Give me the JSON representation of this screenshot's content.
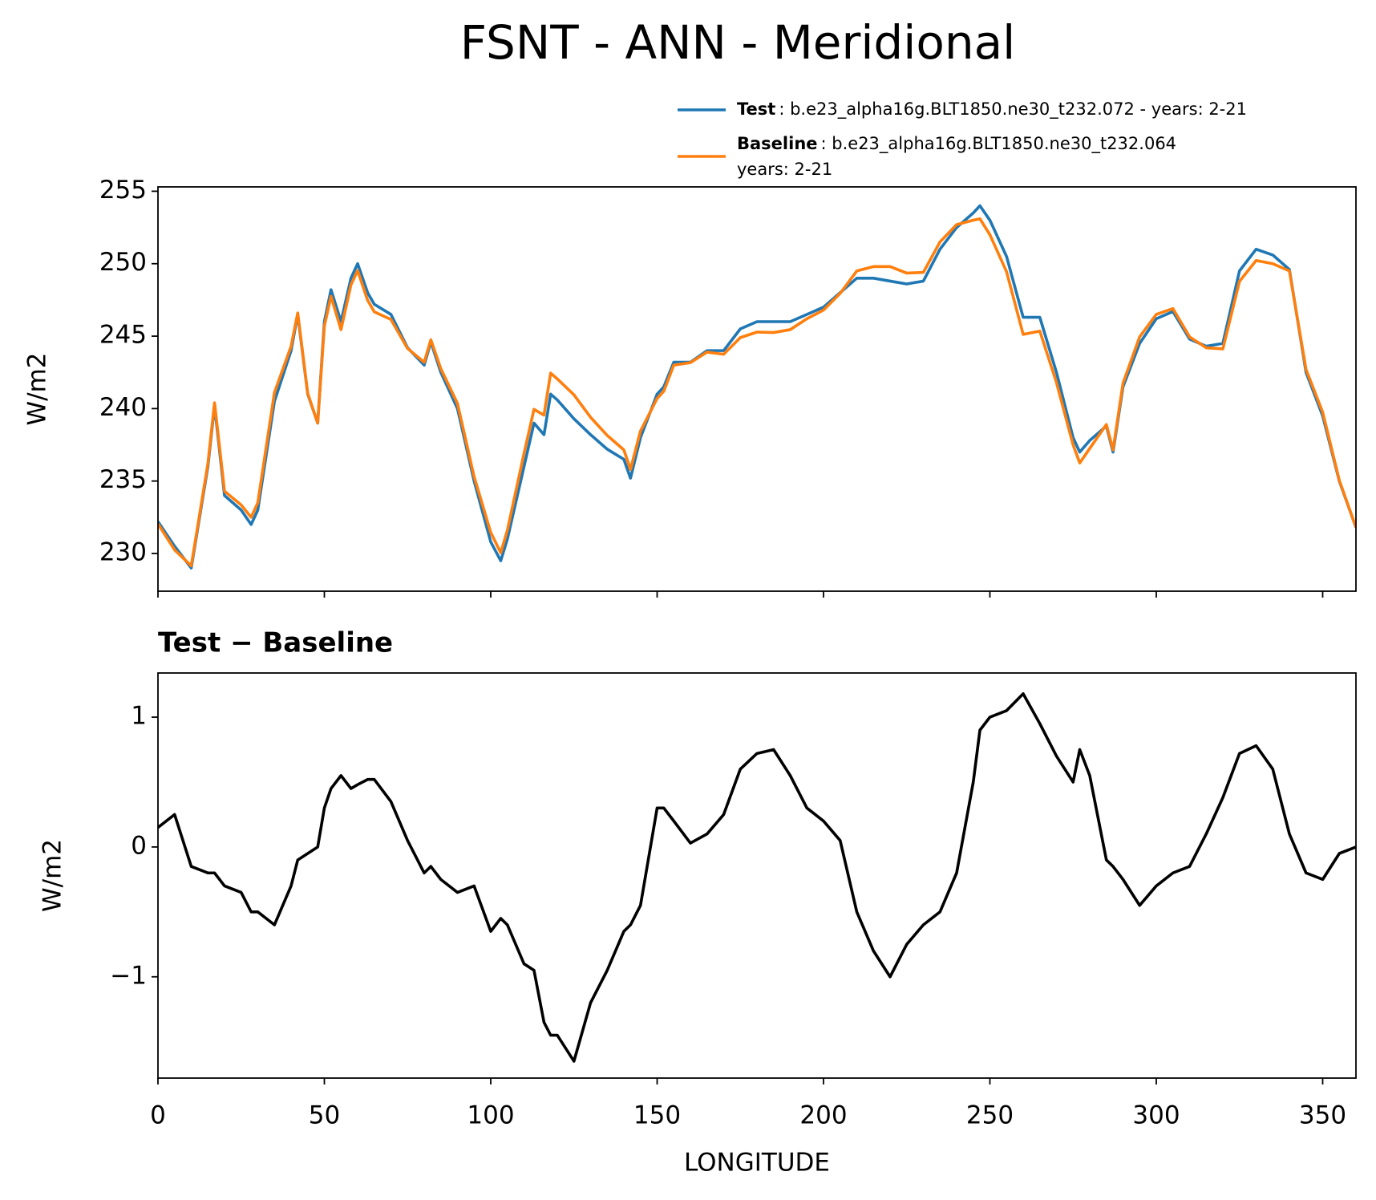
{
  "chart_data": [
    {
      "type": "line",
      "title": "FSNT - ANN - Meridional",
      "ylabel": "W/m2",
      "x": [
        0,
        5,
        10,
        15,
        17,
        20,
        25,
        28,
        30,
        35,
        40,
        42,
        45,
        48,
        50,
        52,
        55,
        58,
        60,
        63,
        65,
        70,
        75,
        80,
        82,
        85,
        90,
        95,
        100,
        103,
        105,
        110,
        113,
        116,
        118,
        120,
        125,
        130,
        135,
        140,
        142,
        145,
        150,
        152,
        155,
        160,
        165,
        170,
        175,
        180,
        185,
        190,
        195,
        200,
        205,
        210,
        215,
        220,
        225,
        230,
        235,
        240,
        245,
        247,
        250,
        255,
        260,
        265,
        270,
        275,
        277,
        280,
        285,
        287,
        290,
        295,
        300,
        305,
        310,
        315,
        320,
        325,
        330,
        335,
        340,
        345,
        350,
        355,
        360
      ],
      "series": [
        {
          "name": "Test",
          "description": [
            ": b.e23_alpha16g.BLT1850.ne30_t232.072 - years: 2-21"
          ],
          "color": "#1f77b4",
          "values": [
            232.2,
            230.5,
            229,
            236,
            240.2,
            234,
            233,
            232,
            233,
            240.5,
            244,
            246.5,
            241,
            239,
            246,
            248.2,
            246,
            249,
            250,
            248,
            247.2,
            246.5,
            244.2,
            243,
            244.6,
            242.5,
            240,
            235,
            230.8,
            229.5,
            231,
            236,
            239,
            238.2,
            241,
            240.6,
            239.3,
            238.2,
            237.2,
            236.5,
            235.2,
            238,
            241,
            241.5,
            243.2,
            243.2,
            244,
            244,
            245.5,
            246,
            246,
            246,
            246.5,
            247,
            248,
            249,
            249,
            248.8,
            248.6,
            248.8,
            251,
            252.5,
            253.5,
            254,
            253,
            250.5,
            246.3,
            246.3,
            242.5,
            238,
            237,
            237.8,
            238.8,
            237,
            241.5,
            244.5,
            246.2,
            246.7,
            244.8,
            244.3,
            244.5,
            249.5,
            251,
            250.6,
            249.6,
            242.5,
            239.5,
            235,
            231.8
          ]
        },
        {
          "name": "Baseline",
          "description": [
            ": b.e23_alpha16g.BLT1850.ne30_t232.064",
            "years: 2-21"
          ],
          "color": "#ff7f0e",
          "values": [
            232.05,
            230.25,
            229.15,
            236.2,
            240.4,
            234.3,
            233.35,
            232.5,
            233.5,
            241.1,
            244.3,
            246.6,
            241.05,
            239,
            245.7,
            247.75,
            245.45,
            248.55,
            249.52,
            247.48,
            246.68,
            246.15,
            244.15,
            243.2,
            244.75,
            242.75,
            240.35,
            235.3,
            231.45,
            230.05,
            231.6,
            236.9,
            239.95,
            239.55,
            242.45,
            242.05,
            240.95,
            239.4,
            238.15,
            237.15,
            235.8,
            238.45,
            240.7,
            241.2,
            243,
            243.17,
            243.9,
            243.75,
            244.9,
            245.28,
            245.25,
            245.45,
            246.2,
            246.8,
            247.95,
            249.5,
            249.8,
            249.8,
            249.35,
            249.4,
            251.5,
            252.7,
            253,
            253.1,
            252,
            249.45,
            245.12,
            245.35,
            241.8,
            237.5,
            236.25,
            237.25,
            238.9,
            237.15,
            241.75,
            244.95,
            246.5,
            246.9,
            244.95,
            244.2,
            244.12,
            248.78,
            250.22,
            250,
            249.5,
            242.7,
            239.75,
            235.05,
            231.8
          ]
        }
      ],
      "xlim": [
        0,
        360
      ],
      "xticks": [
        0,
        50,
        100,
        150,
        200,
        250,
        300,
        350
      ],
      "show_xtick_labels": false,
      "ylim": [
        227.4,
        255.3
      ],
      "yticks": [
        230,
        235,
        240,
        245,
        250,
        255
      ],
      "legend": "upper right"
    },
    {
      "type": "line",
      "title": "Test − Baseline",
      "ylabel": "W/m2",
      "xlabel": "LONGITUDE",
      "x": [
        0,
        5,
        10,
        15,
        17,
        20,
        25,
        28,
        30,
        35,
        40,
        42,
        45,
        48,
        50,
        52,
        55,
        58,
        60,
        63,
        65,
        70,
        75,
        80,
        82,
        85,
        90,
        95,
        100,
        103,
        105,
        110,
        113,
        116,
        118,
        120,
        125,
        130,
        135,
        140,
        142,
        145,
        150,
        152,
        155,
        160,
        165,
        170,
        175,
        180,
        185,
        190,
        195,
        200,
        205,
        210,
        215,
        220,
        225,
        230,
        235,
        240,
        245,
        247,
        250,
        255,
        260,
        265,
        270,
        275,
        277,
        280,
        285,
        287,
        290,
        295,
        300,
        305,
        310,
        315,
        320,
        325,
        330,
        335,
        340,
        345,
        350,
        355,
        360
      ],
      "color": "#000000",
      "values": [
        0.15,
        0.25,
        -0.15,
        -0.2,
        -0.2,
        -0.3,
        -0.35,
        -0.5,
        -0.5,
        -0.6,
        -0.3,
        -0.1,
        -0.05,
        0,
        0.3,
        0.45,
        0.55,
        0.45,
        0.48,
        0.52,
        0.52,
        0.35,
        0.05,
        -0.2,
        -0.15,
        -0.25,
        -0.35,
        -0.3,
        -0.65,
        -0.55,
        -0.6,
        -0.9,
        -0.95,
        -1.35,
        -1.45,
        -1.45,
        -1.65,
        -1.2,
        -0.95,
        -0.65,
        -0.6,
        -0.45,
        0.3,
        0.3,
        0.2,
        0.03,
        0.1,
        0.25,
        0.6,
        0.72,
        0.75,
        0.55,
        0.3,
        0.2,
        0.05,
        -0.5,
        -0.8,
        -1.0,
        -0.75,
        -0.6,
        -0.5,
        -0.2,
        0.5,
        0.9,
        1.0,
        1.05,
        1.18,
        0.95,
        0.7,
        0.5,
        0.75,
        0.55,
        -0.1,
        -0.15,
        -0.25,
        -0.45,
        -0.3,
        -0.2,
        -0.15,
        0.1,
        0.38,
        0.72,
        0.78,
        0.6,
        0.1,
        -0.2,
        -0.25,
        -0.05,
        0.0
      ],
      "xlim": [
        0,
        360
      ],
      "xticks": [
        0,
        50,
        100,
        150,
        200,
        250,
        300,
        350
      ],
      "show_xtick_labels": true,
      "ylim": [
        -1.78,
        1.34
      ],
      "yticks": [
        {
          "value": -1,
          "label": "−1"
        },
        0,
        1
      ]
    }
  ]
}
